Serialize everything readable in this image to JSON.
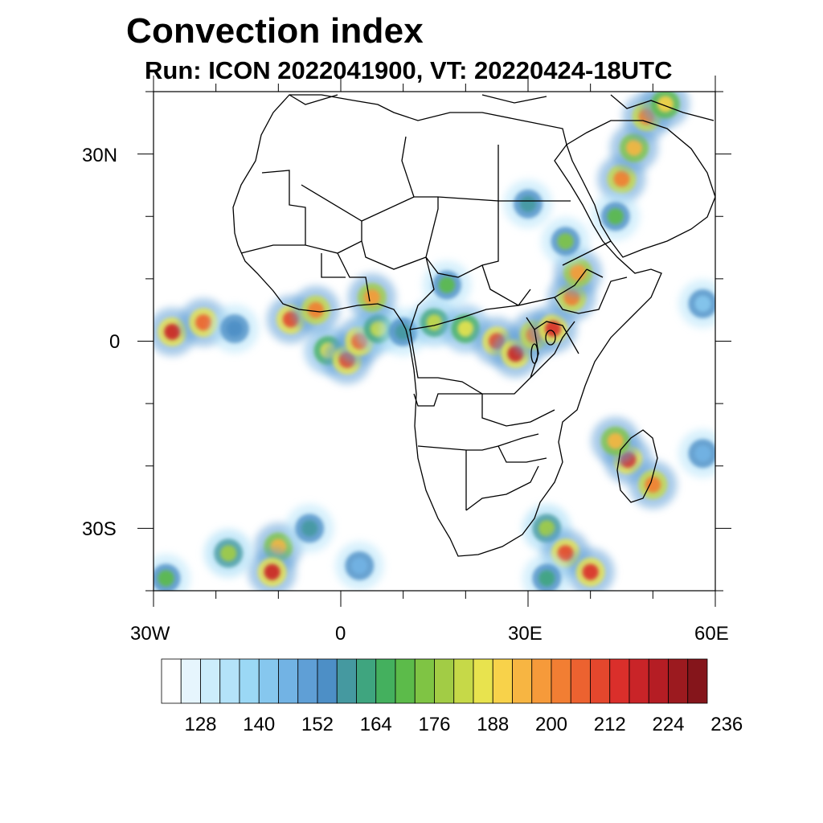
{
  "title": "Convection index",
  "subtitle": "Run: ICON 2022041900,  VT: 20220424-18UTC",
  "map": {
    "projection": "lat-lon",
    "lon_range": [
      -30,
      60
    ],
    "lat_range": [
      -40,
      40
    ],
    "x_tick_labels": [
      "30W",
      "0",
      "30E",
      "60E"
    ],
    "y_tick_labels": [
      "30N",
      "0",
      "30S"
    ],
    "overlays": [
      "coastlines",
      "country-borders"
    ]
  },
  "chart_data": {
    "type": "heatmap",
    "title": "Convection index",
    "subtitle": "Run: ICON 2022041900,  VT: 20220424-18UTC",
    "xlabel": "",
    "ylabel": "",
    "x_ticks": [
      -30,
      0,
      30,
      60
    ],
    "y_ticks": [
      30,
      0,
      -30
    ],
    "xlim": [
      -30,
      60
    ],
    "ylim": [
      -40,
      40
    ],
    "colorbar": {
      "levels": [
        122,
        125,
        128,
        131,
        134,
        137,
        140,
        143,
        146,
        149,
        152,
        155,
        158,
        161,
        164,
        167,
        170,
        173,
        176,
        179,
        182,
        185,
        188,
        191,
        194,
        197,
        200,
        203,
        206,
        209,
        212,
        215,
        218,
        221,
        224,
        227,
        230,
        233,
        236
      ],
      "tick_labels": [
        "128",
        "140",
        "152",
        "164",
        "176",
        "188",
        "200",
        "212",
        "224",
        "236"
      ],
      "colors": [
        "#ffffff",
        "#e6f5fd",
        "#ccedfb",
        "#b4e3f9",
        "#9bd8f5",
        "#86c7ee",
        "#72b3e4",
        "#5f9fd6",
        "#4d8fc6",
        "#4599a0",
        "#3fa57f",
        "#44b05e",
        "#5cbb4a",
        "#7fc444",
        "#a2cc45",
        "#c6d948",
        "#e8e34e",
        "#f8d24a",
        "#f7b542",
        "#f69a3a",
        "#f27e33",
        "#ec6230",
        "#e4472d",
        "#da2f2b",
        "#c92428",
        "#b51d24",
        "#9c1a1f",
        "#85151b"
      ]
    },
    "cells": [
      {
        "lon": -27,
        "lat": 1.5,
        "level": 24
      },
      {
        "lon": -22,
        "lat": 3,
        "level": 21
      },
      {
        "lon": -17,
        "lat": 2,
        "level": 8
      },
      {
        "lon": -8,
        "lat": 3.5,
        "level": 22
      },
      {
        "lon": -4,
        "lat": 5,
        "level": 20
      },
      {
        "lon": -2,
        "lat": -1.5,
        "level": 16
      },
      {
        "lon": 1,
        "lat": -3,
        "level": 22
      },
      {
        "lon": 3,
        "lat": 0,
        "level": 21
      },
      {
        "lon": 6,
        "lat": 2,
        "level": 15
      },
      {
        "lon": 10,
        "lat": 1.5,
        "level": 9
      },
      {
        "lon": 15,
        "lat": 3,
        "level": 15
      },
      {
        "lon": 20,
        "lat": 2,
        "level": 16
      },
      {
        "lon": 25,
        "lat": 0,
        "level": 22
      },
      {
        "lon": 28,
        "lat": -2,
        "level": 24
      },
      {
        "lon": 31,
        "lat": 1,
        "level": 20
      },
      {
        "lon": 34,
        "lat": 2,
        "level": 23
      },
      {
        "lon": 37,
        "lat": 7,
        "level": 20
      },
      {
        "lon": 38,
        "lat": 11,
        "level": 19
      },
      {
        "lon": 36,
        "lat": 16,
        "level": 13
      },
      {
        "lon": 45,
        "lat": 26,
        "level": 20
      },
      {
        "lon": 47,
        "lat": 31,
        "level": 18
      },
      {
        "lon": 49,
        "lat": 36,
        "level": 20
      },
      {
        "lon": 52,
        "lat": 38,
        "level": 17
      },
      {
        "lon": 44,
        "lat": 20,
        "level": 12
      },
      {
        "lon": 46,
        "lat": -19,
        "level": 23
      },
      {
        "lon": 44,
        "lat": -16,
        "level": 18
      },
      {
        "lon": 50,
        "lat": -23,
        "level": 20
      },
      {
        "lon": 33,
        "lat": -30,
        "level": 14
      },
      {
        "lon": 36,
        "lat": -34,
        "level": 22
      },
      {
        "lon": 40,
        "lat": -37,
        "level": 23
      },
      {
        "lon": -10,
        "lat": -33,
        "level": 18
      },
      {
        "lon": -11,
        "lat": -37,
        "level": 24
      },
      {
        "lon": -18,
        "lat": -34,
        "level": 14
      },
      {
        "lon": -5,
        "lat": -30,
        "level": 9
      },
      {
        "lon": 3,
        "lat": -36,
        "level": 6
      },
      {
        "lon": -28,
        "lat": -38,
        "level": 12
      },
      {
        "lon": 5,
        "lat": 7,
        "level": 19
      },
      {
        "lon": 17,
        "lat": 9,
        "level": 12
      },
      {
        "lon": 30,
        "lat": 22,
        "level": 9
      },
      {
        "lon": 33,
        "lat": -38,
        "level": 10
      },
      {
        "lon": 58,
        "lat": -18,
        "level": 6
      },
      {
        "lon": 58,
        "lat": 6,
        "level": 5
      }
    ]
  }
}
